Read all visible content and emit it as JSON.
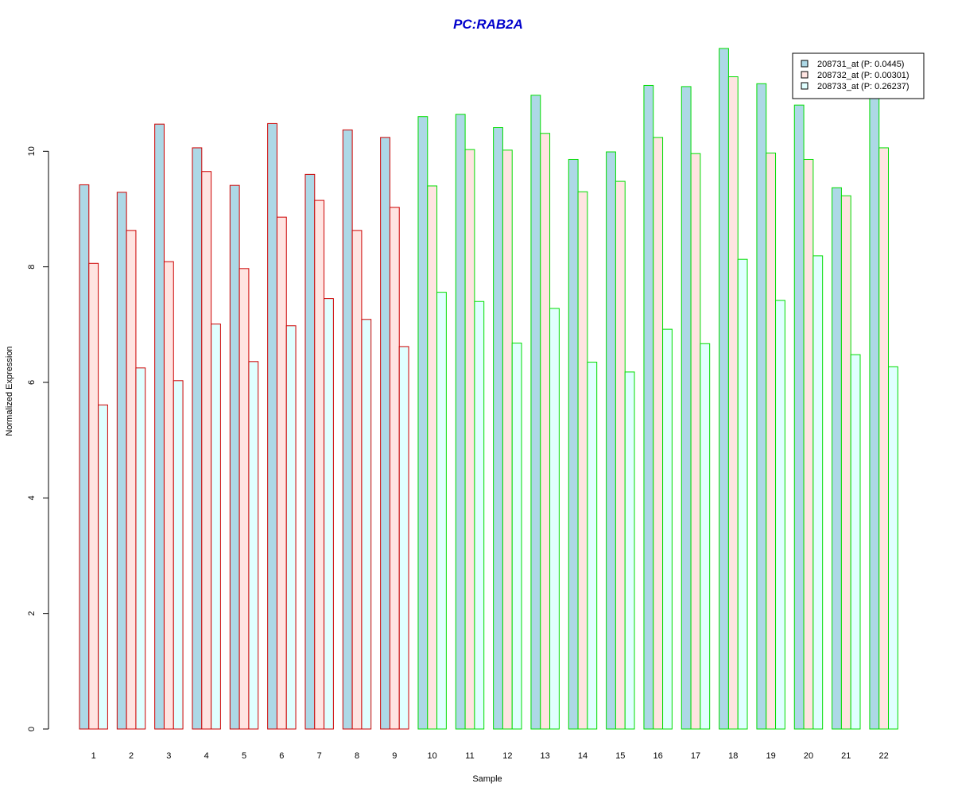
{
  "chart_data": {
    "type": "bar",
    "title": "PC:RAB2A",
    "xlabel": "Sample",
    "ylabel": "Normalized Expression",
    "ylim": [
      0,
      11.8
    ],
    "yticks": [
      0,
      2,
      4,
      6,
      8,
      10
    ],
    "grid": false,
    "legend_position": "top-right",
    "categories": [
      "1",
      "2",
      "3",
      "4",
      "5",
      "6",
      "7",
      "8",
      "9",
      "10",
      "11",
      "12",
      "13",
      "14",
      "15",
      "16",
      "17",
      "18",
      "19",
      "20",
      "21",
      "22"
    ],
    "group_border_colors": [
      "#cc0000",
      "#cc0000",
      "#cc0000",
      "#cc0000",
      "#cc0000",
      "#cc0000",
      "#cc0000",
      "#cc0000",
      "#cc0000",
      "#00dd00",
      "#00dd00",
      "#00dd00",
      "#00dd00",
      "#00dd00",
      "#00dd00",
      "#00dd00",
      "#00dd00",
      "#00dd00",
      "#00dd00",
      "#00dd00",
      "#00dd00",
      "#00dd00"
    ],
    "series": [
      {
        "name": "208731_at (P: 0.0445)",
        "fill": "#add8e6",
        "values": [
          9.42,
          9.29,
          10.47,
          10.06,
          9.41,
          10.48,
          9.6,
          10.37,
          10.24,
          10.6,
          10.64,
          10.41,
          10.97,
          9.86,
          9.99,
          11.14,
          11.12,
          11.78,
          11.17,
          10.8,
          9.37,
          11.05
        ]
      },
      {
        "name": "208732_at (P: 0.00301)",
        "fill": "#ffe4e1",
        "values": [
          8.06,
          8.63,
          8.09,
          9.65,
          7.97,
          8.86,
          9.15,
          8.63,
          9.03,
          9.4,
          10.03,
          10.02,
          10.31,
          9.3,
          9.48,
          10.24,
          9.96,
          11.29,
          9.97,
          9.86,
          9.23,
          10.06
        ]
      },
      {
        "name": "208733_at (P: 0.26237)",
        "fill": "#e0ffff",
        "values": [
          5.61,
          6.25,
          6.03,
          7.01,
          6.36,
          6.98,
          7.45,
          7.09,
          6.62,
          7.56,
          7.4,
          6.68,
          7.28,
          6.35,
          6.18,
          6.92,
          6.67,
          8.13,
          7.42,
          8.19,
          6.48,
          6.27
        ]
      }
    ]
  },
  "colors": {
    "title": "#0000cc",
    "axis": "#000000"
  }
}
